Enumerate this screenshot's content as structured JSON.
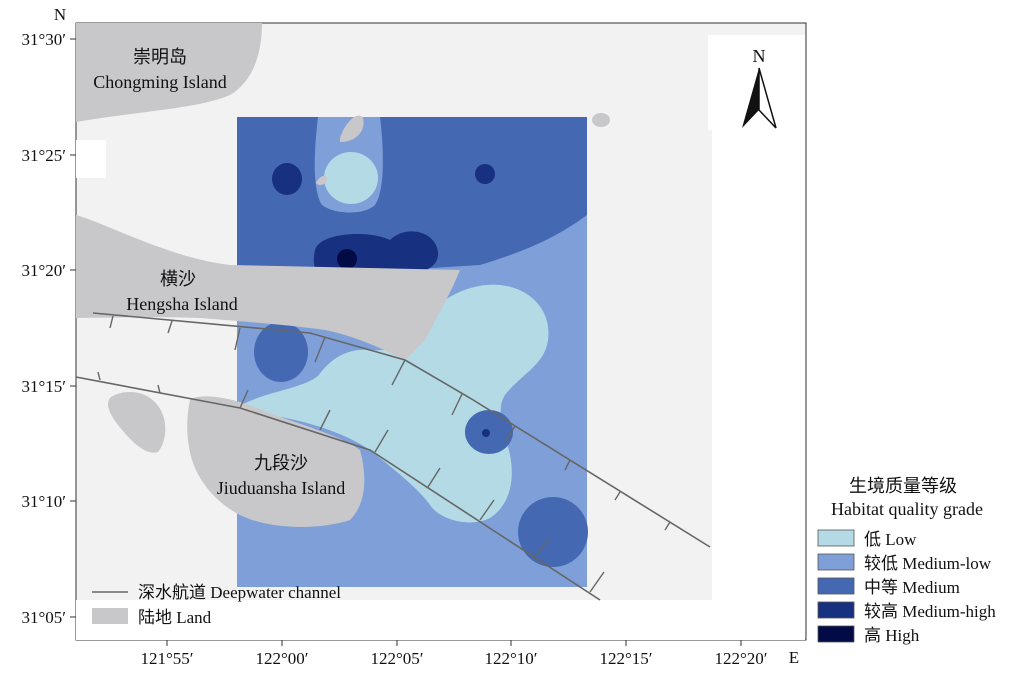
{
  "map": {
    "axis_label_north": "N",
    "axis_label_east": "E",
    "lat_ticks": [
      "31°30′",
      "31°25′",
      "31°20′",
      "31°15′",
      "31°10′",
      "31°05′"
    ],
    "lon_ticks": [
      "121°55′",
      "122°00′",
      "122°05′",
      "122°10′",
      "122°15′",
      "122°20′"
    ],
    "north_arrow_label": "N",
    "places": {
      "chongming_cn": "崇明岛",
      "chongming_en": "Chongming Island",
      "hengsha_cn": "横沙",
      "hengsha_en": "Hengsha Island",
      "jiuduansha_cn": "九段沙",
      "jiuduansha_en": "Jiuduansha Island"
    },
    "map_legend": {
      "channel": "深水航道 Deepwater channel",
      "land": "陆地 Land"
    },
    "colors": {
      "land": "#c8c7ca",
      "water": "#f2f2f2",
      "low": "#b3dae5",
      "medium_low": "#7f9fd8",
      "medium": "#4469b2",
      "medium_high": "#17307f",
      "high": "#020b46"
    }
  },
  "habitat_legend": {
    "title_cn": "生境质量等级",
    "title_en": "Habitat quality grade",
    "grades": [
      {
        "label": "低 Low",
        "color": "#b3dae5"
      },
      {
        "label": "较低 Medium-low",
        "color": "#7f9fd8"
      },
      {
        "label": "中等 Medium",
        "color": "#4469b2"
      },
      {
        "label": "较高 Medium-high",
        "color": "#17307f"
      },
      {
        "label": "高 High",
        "color": "#020b46"
      }
    ]
  }
}
